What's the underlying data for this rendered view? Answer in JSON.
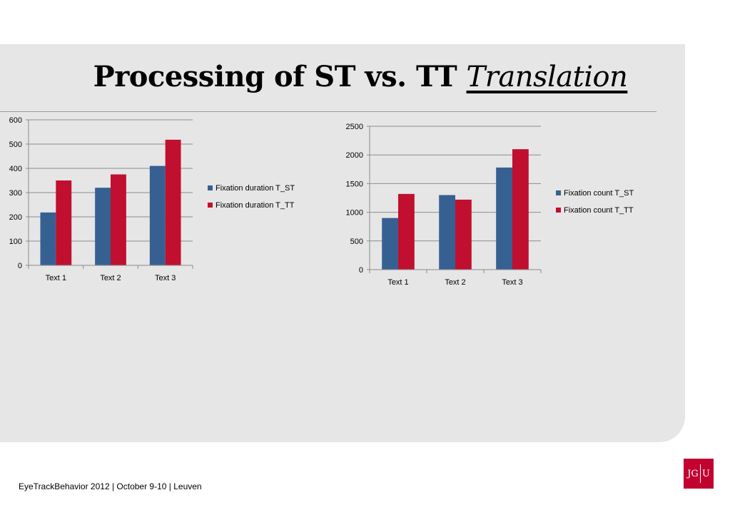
{
  "slide": {
    "title_main": "Processing of ST vs. TT",
    "title_italic": "Translation",
    "footer": "EyeTrackBehavior 2012 | October 9-10 | Leuven",
    "logo_left": "JG",
    "logo_right": "U"
  },
  "colors": {
    "st": "#376092",
    "tt": "#c00f2f"
  },
  "chart_data": [
    {
      "type": "bar",
      "categories": [
        "Text 1",
        "Text 2",
        "Text 3"
      ],
      "series": [
        {
          "name": "Fixation duration T_ST",
          "values": [
            218,
            320,
            410
          ]
        },
        {
          "name": "Fixation duration T_TT",
          "values": [
            350,
            375,
            518
          ]
        }
      ],
      "ylim": [
        0,
        600
      ],
      "yticks": [
        0,
        100,
        200,
        300,
        400,
        500,
        600
      ],
      "legend": "right",
      "grid": true
    },
    {
      "type": "bar",
      "categories": [
        "Text 1",
        "Text 2",
        "Text 3"
      ],
      "series": [
        {
          "name": "Fixation count T_ST",
          "values": [
            900,
            1300,
            1780
          ]
        },
        {
          "name": "Fixation count T_TT",
          "values": [
            1320,
            1220,
            2100
          ]
        }
      ],
      "ylim": [
        0,
        2500
      ],
      "yticks": [
        0,
        500,
        1000,
        1500,
        2000,
        2500
      ],
      "legend": "right",
      "grid": true
    }
  ]
}
